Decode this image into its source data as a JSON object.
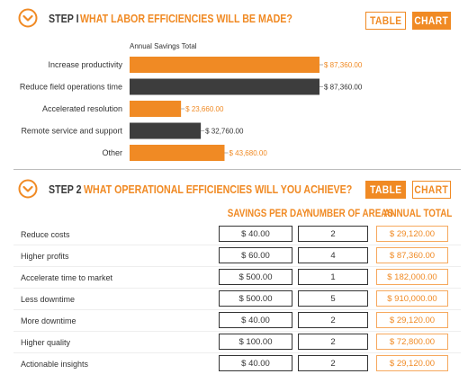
{
  "colors": {
    "accent": "#f08a24",
    "dark": "#3d3d3d"
  },
  "step1": {
    "number": "STEP I",
    "question": "WHAT LABOR EFFICIENCIES WILL BE MADE?",
    "table_label": "TABLE",
    "chart_label": "CHART",
    "active_view": "chart"
  },
  "chart_data": {
    "type": "bar",
    "orientation": "horizontal",
    "title": "Annual Savings Total",
    "categories": [
      "Increase productivity",
      "Reduce field operations time",
      "Accelerated resolution",
      "Remote service and support",
      "Other"
    ],
    "values": [
      87360,
      87360,
      23660,
      32760,
      43680
    ],
    "value_labels": [
      "$ 87,360.00",
      "$ 87,360.00",
      "$ 23,660.00",
      "$ 32,760.00",
      "$ 43,680.00"
    ],
    "bar_colors": [
      "#f08a24",
      "#3d3d3d",
      "#f08a24",
      "#3d3d3d",
      "#f08a24"
    ],
    "xlim": [
      0,
      87360
    ],
    "grid": false,
    "legend": "none"
  },
  "step2": {
    "number": "STEP 2",
    "question": "WHAT OPERATIONAL EFFICIENCIES WILL YOU ACHIEVE?",
    "table_label": "TABLE",
    "chart_label": "CHART",
    "active_view": "table",
    "columns": [
      "SAVINGS PER DAY",
      "NUMBER OF AREAS",
      "ANNUAL TOTAL"
    ],
    "rows": [
      {
        "label": "Reduce costs",
        "savings": "$ 40.00",
        "areas": "2",
        "total": "$ 29,120.00"
      },
      {
        "label": "Higher profits",
        "savings": "$ 60.00",
        "areas": "4",
        "total": "$ 87,360.00"
      },
      {
        "label": "Accelerate time to market",
        "savings": "$ 500.00",
        "areas": "1",
        "total": "$ 182,000.00"
      },
      {
        "label": "Less downtime",
        "savings": "$ 500.00",
        "areas": "5",
        "total": "$ 910,000.00"
      },
      {
        "label": "More downtime",
        "savings": "$ 40.00",
        "areas": "2",
        "total": "$ 29,120.00"
      },
      {
        "label": "Higher quality",
        "savings": "$ 100.00",
        "areas": "2",
        "total": "$ 72,800.00"
      },
      {
        "label": "Actionable insights",
        "savings": "$ 40.00",
        "areas": "2",
        "total": "$ 29,120.00"
      }
    ]
  },
  "icons": {
    "step_toggle": "chevron-down-circle-icon"
  }
}
